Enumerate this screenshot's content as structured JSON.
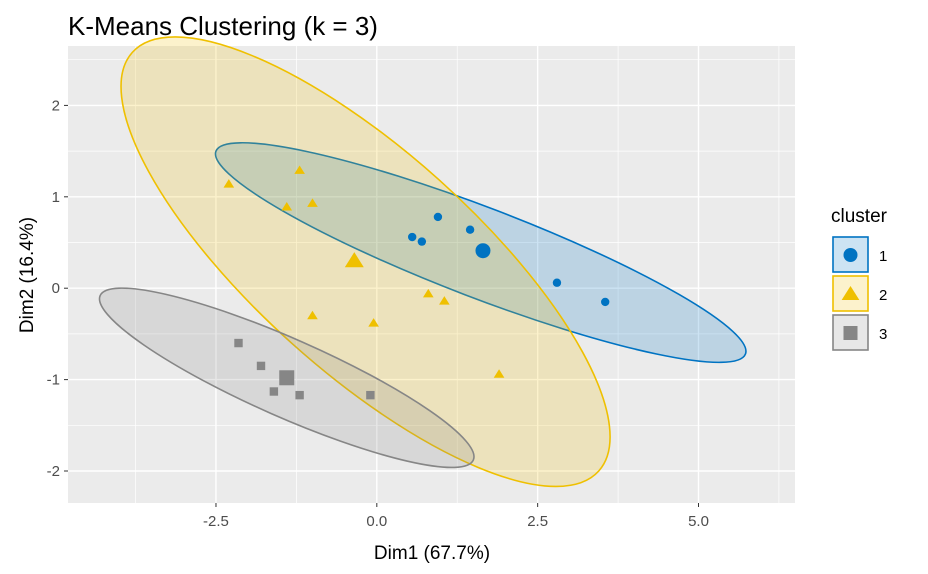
{
  "chart_data": {
    "type": "scatter",
    "title": "K-Means Clustering (k = 3)",
    "xlabel": "Dim1 (67.7%)",
    "ylabel": "Dim2 (16.4%)",
    "xlim": [
      -4.8,
      6.5
    ],
    "ylim": [
      -2.35,
      2.65
    ],
    "x_ticks": [
      -2.5,
      0.0,
      2.5,
      5.0
    ],
    "x_tick_labels": [
      "-2.5",
      "0.0",
      "2.5",
      "5.0"
    ],
    "y_ticks": [
      -2,
      -1,
      0,
      1,
      2
    ],
    "y_tick_labels": [
      "-2",
      "-1",
      "0",
      "1",
      "2"
    ],
    "grid": true,
    "legend": {
      "title": "cluster",
      "placement": "right"
    },
    "series": [
      {
        "name": "1",
        "color": "#0073C2",
        "shape": "circle",
        "points": [
          [
            0.55,
            0.56
          ],
          [
            0.7,
            0.51
          ],
          [
            0.95,
            0.78
          ],
          [
            1.45,
            0.64
          ],
          [
            2.8,
            0.06
          ],
          [
            3.55,
            -0.15
          ]
        ],
        "centroid": [
          1.65,
          0.41
        ],
        "ellipse": [
          [
            5.73,
            -0.72
          ],
          [
            -2.5,
            1.5
          ]
        ]
      },
      {
        "name": "2",
        "color": "#EFC000",
        "shape": "triangle",
        "points": [
          [
            -2.3,
            1.14
          ],
          [
            -1.2,
            1.29
          ],
          [
            -1.4,
            0.89
          ],
          [
            -1.0,
            0.93
          ],
          [
            -1.0,
            -0.3
          ],
          [
            -0.05,
            -0.38
          ],
          [
            0.8,
            -0.06
          ],
          [
            1.05,
            -0.14
          ],
          [
            1.9,
            -0.94
          ]
        ],
        "centroid": [
          -0.35,
          0.3
        ],
        "ellipse": [
          [
            3.45,
            -2.0
          ],
          [
            -3.8,
            2.58
          ]
        ]
      },
      {
        "name": "3",
        "color": "#868686",
        "shape": "square",
        "points": [
          [
            -2.15,
            -0.6
          ],
          [
            -1.8,
            -0.85
          ],
          [
            -1.6,
            -1.13
          ],
          [
            -1.2,
            -1.17
          ],
          [
            -0.1,
            -1.17
          ]
        ],
        "centroid": [
          -1.4,
          -0.98
        ],
        "ellipse": [
          [
            1.5,
            -1.88
          ],
          [
            -4.3,
            -0.08
          ]
        ]
      }
    ]
  }
}
